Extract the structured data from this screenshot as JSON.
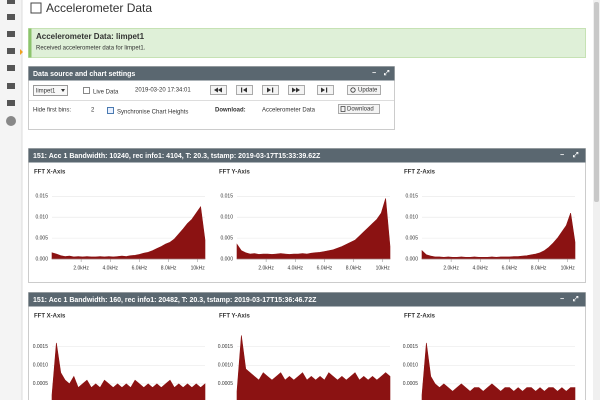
{
  "header": {
    "title": "Accelerometer Data"
  },
  "alert": {
    "title": "Accelerometer Data: limpet1",
    "text": "Received accelerometer data for limpet1."
  },
  "settings": {
    "title": "Data source and chart settings",
    "source": "limpet1",
    "live": "Live Data",
    "timestamp": "2019-03-20 17:34:01",
    "update": "Update",
    "hide_label": "Hide first bins:",
    "hide_value": "2",
    "sync": "Synchronise Chart Heights",
    "download_label": "Download:",
    "download_item": "Accelerometer Data",
    "download_button": "Download"
  },
  "panels": [
    {
      "title": "151: Acc 1 Bandwidth: 10240, rec  info1: 4104, T: 20.3, tstamp: 2019-03-17T15:33:39.62Z"
    },
    {
      "title": "151: Acc 1 Bandwidth: 160, rec  info1: 20482, T: 20.3, tstamp: 2019-03-17T15:36:46.72Z"
    }
  ],
  "chart_data": [
    {
      "type": "area",
      "title": "FFT X-Axis",
      "color": "#8b1212",
      "grid": true,
      "x": [
        0,
        0.3,
        0.6,
        0.9,
        1.2,
        1.5,
        1.8,
        2.1,
        2.4,
        2.7,
        3,
        3.3,
        3.6,
        3.9,
        4.2,
        4.5,
        4.8,
        5.1,
        5.4,
        5.7,
        6,
        6.3,
        6.6,
        6.9,
        7.2,
        7.5,
        7.8,
        8.1,
        8.4,
        8.7,
        9,
        9.3,
        9.6,
        9.9,
        10.2,
        10.5
      ],
      "values": [
        0.0015,
        0.0012,
        0.0008,
        0.0006,
        0.0007,
        0.0005,
        0.0006,
        0.0005,
        0.0006,
        0.0005,
        0.0005,
        0.0006,
        0.0005,
        0.0006,
        0.0005,
        0.0006,
        0.0007,
        0.0006,
        0.0008,
        0.0009,
        0.0011,
        0.0014,
        0.0016,
        0.002,
        0.0025,
        0.003,
        0.0036,
        0.004,
        0.0048,
        0.006,
        0.0072,
        0.0085,
        0.0095,
        0.011,
        0.0125,
        0.0045
      ],
      "xlim": [
        0,
        10.5
      ],
      "xticks": [
        {
          "value": 2,
          "label": "2.0kHz"
        },
        {
          "value": 4,
          "label": "4.0kHz"
        },
        {
          "value": 6,
          "label": "6.0kHz"
        },
        {
          "value": 8,
          "label": "8.0kHz"
        },
        {
          "value": 10,
          "label": "10kHz"
        }
      ],
      "ylim": [
        0,
        0.017
      ],
      "yticks": [
        {
          "value": 0,
          "label": "0.000"
        },
        0.005,
        {
          "value": 0.01,
          "label": "0.010"
        },
        0.015
      ]
    },
    {
      "type": "area",
      "title": "FFT Y-Axis",
      "color": "#8b1212",
      "grid": true,
      "x": [
        0,
        0.3,
        0.6,
        0.9,
        1.2,
        1.5,
        1.8,
        2.1,
        2.4,
        2.7,
        3,
        3.3,
        3.6,
        3.9,
        4.2,
        4.5,
        4.8,
        5.1,
        5.4,
        5.7,
        6,
        6.3,
        6.6,
        6.9,
        7.2,
        7.5,
        7.8,
        8.1,
        8.4,
        8.7,
        9,
        9.3,
        9.6,
        9.9,
        10.2,
        10.5
      ],
      "values": [
        0.0035,
        0.002,
        0.0015,
        0.0012,
        0.0013,
        0.0011,
        0.0012,
        0.0012,
        0.0011,
        0.0012,
        0.0013,
        0.0012,
        0.0011,
        0.0012,
        0.0012,
        0.0013,
        0.0012,
        0.0014,
        0.0015,
        0.0016,
        0.0018,
        0.002,
        0.0022,
        0.0026,
        0.003,
        0.0035,
        0.004,
        0.0045,
        0.0055,
        0.0065,
        0.0075,
        0.0085,
        0.0095,
        0.011,
        0.0145,
        0.003
      ],
      "xlim": [
        0,
        10.5
      ],
      "xticks": [
        {
          "value": 2,
          "label": "2.0kHz"
        },
        {
          "value": 4,
          "label": "4.0kHz"
        },
        {
          "value": 6,
          "label": "6.0kHz"
        },
        {
          "value": 8,
          "label": "8.0kHz"
        },
        {
          "value": 10,
          "label": "10kHz"
        }
      ],
      "ylim": [
        0,
        0.017
      ],
      "yticks": [
        {
          "value": 0,
          "label": "0.000"
        },
        0.005,
        {
          "value": 0.01,
          "label": "0.010"
        },
        0.015
      ]
    },
    {
      "type": "area",
      "title": "FFT Z-Axis",
      "color": "#8b1212",
      "grid": true,
      "x": [
        0,
        0.3,
        0.6,
        0.9,
        1.2,
        1.5,
        1.8,
        2.1,
        2.4,
        2.7,
        3,
        3.3,
        3.6,
        3.9,
        4.2,
        4.5,
        4.8,
        5.1,
        5.4,
        5.7,
        6,
        6.3,
        6.6,
        6.9,
        7.2,
        7.5,
        7.8,
        8.1,
        8.4,
        8.7,
        9,
        9.3,
        9.6,
        9.9,
        10.2,
        10.5
      ],
      "values": [
        0.002,
        0.001,
        0.0007,
        0.0005,
        0.0005,
        0.0004,
        0.0005,
        0.0004,
        0.0004,
        0.0005,
        0.0004,
        0.0004,
        0.0005,
        0.0004,
        0.0004,
        0.0004,
        0.0005,
        0.0004,
        0.0005,
        0.0005,
        0.0005,
        0.0006,
        0.0006,
        0.0007,
        0.0008,
        0.001,
        0.0012,
        0.0015,
        0.002,
        0.0028,
        0.0038,
        0.005,
        0.0065,
        0.008,
        0.011,
        0.004
      ],
      "xlim": [
        0,
        10.5
      ],
      "xticks": [
        {
          "value": 2,
          "label": "2.0kHz"
        },
        {
          "value": 4,
          "label": "4.0kHz"
        },
        {
          "value": 6,
          "label": "6.0kHz"
        },
        {
          "value": 8,
          "label": "8.0kHz"
        },
        {
          "value": 10,
          "label": "10kHz"
        }
      ],
      "ylim": [
        0,
        0.017
      ],
      "yticks": [
        {
          "value": 0,
          "label": "0.000"
        },
        0.005,
        {
          "value": 0.01,
          "label": "0.010"
        },
        0.015
      ]
    },
    {
      "type": "area",
      "title": "FFT X-Axis",
      "color": "#8b1212",
      "grid": true,
      "values": [
        0.0002,
        0.0016,
        0.0008,
        0.0006,
        0.0005,
        0.0007,
        0.0004,
        0.0005,
        0.0006,
        0.0004,
        0.0005,
        0.0004,
        0.0006,
        0.0005,
        0.0004,
        0.0005,
        0.0004,
        0.0005,
        0.0004,
        0.0006,
        0.0005,
        0.0004,
        0.0005,
        0.0004,
        0.0005,
        0.0004,
        0.0005,
        0.0006,
        0.0004,
        0.0005,
        0.0004,
        0.0005,
        0.0004,
        0.0005,
        0.0004,
        0.0005
      ],
      "ylim": [
        0,
        0.002
      ],
      "yticks": [
        0.0005,
        {
          "value": 0.001,
          "label": "0.0010"
        },
        0.0015
      ]
    },
    {
      "type": "area",
      "title": "FFT Y-Axis",
      "color": "#8b1212",
      "grid": true,
      "values": [
        0.0003,
        0.0018,
        0.0009,
        0.0008,
        0.0007,
        0.0006,
        0.0008,
        0.0007,
        0.0006,
        0.0007,
        0.0008,
        0.0006,
        0.0007,
        0.0006,
        0.0007,
        0.0008,
        0.0006,
        0.0007,
        0.0006,
        0.0007,
        0.0006,
        0.0008,
        0.0007,
        0.0006,
        0.0007,
        0.0006,
        0.0007,
        0.0008,
        0.0006,
        0.0007,
        0.0006,
        0.0007,
        0.0006,
        0.0007,
        0.0008,
        0.0007
      ],
      "ylim": [
        0,
        0.002
      ],
      "yticks": [
        0.0005,
        {
          "value": 0.001,
          "label": "0.0010"
        },
        0.0015
      ]
    },
    {
      "type": "area",
      "title": "FFT Z-Axis",
      "color": "#8b1212",
      "grid": true,
      "values": [
        0.0002,
        0.0016,
        0.0007,
        0.0005,
        0.0004,
        0.0005,
        0.0004,
        0.0003,
        0.0004,
        0.0005,
        0.0004,
        0.0003,
        0.0004,
        0.0004,
        0.0003,
        0.0004,
        0.0005,
        0.0004,
        0.0003,
        0.0004,
        0.0004,
        0.0003,
        0.0004,
        0.0003,
        0.0004,
        0.0004,
        0.0003,
        0.0004,
        0.0003,
        0.0004,
        0.0004,
        0.0003,
        0.0004,
        0.0003,
        0.0004,
        0.0004
      ],
      "ylim": [
        0,
        0.002
      ],
      "yticks": [
        0.0005,
        {
          "value": 0.001,
          "label": "0.0010"
        },
        0.0015
      ]
    }
  ]
}
